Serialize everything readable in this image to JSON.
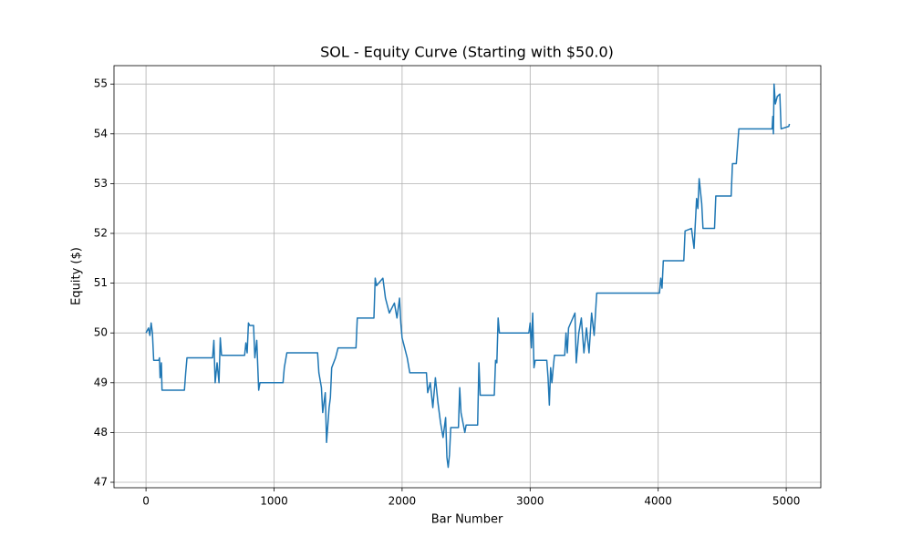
{
  "chart_data": {
    "type": "line",
    "title": "SOL - Equity Curve (Starting with $50.0)",
    "x_label": "Bar Number",
    "y_label": "Equity ($)",
    "xlim": [
      -250,
      5270
    ],
    "ylim": [
      46.89,
      55.37
    ],
    "xticks": [
      0,
      1000,
      2000,
      3000,
      4000,
      5000
    ],
    "yticks": [
      47,
      48,
      49,
      50,
      51,
      52,
      53,
      54,
      55
    ],
    "grid": true,
    "series": [
      {
        "color": "#1f77b4",
        "x": [
          0,
          20,
          30,
          40,
          50,
          60,
          100,
          105,
          110,
          120,
          125,
          300,
          310,
          320,
          520,
          530,
          540,
          555,
          570,
          580,
          590,
          770,
          780,
          790,
          800,
          810,
          840,
          850,
          865,
          880,
          890,
          1070,
          1080,
          1100,
          1340,
          1350,
          1370,
          1380,
          1400,
          1410,
          1430,
          1440,
          1450,
          1480,
          1500,
          1640,
          1650,
          1780,
          1790,
          1800,
          1850,
          1870,
          1900,
          1940,
          1960,
          1980,
          1990,
          2000,
          2020,
          2040,
          2060,
          2190,
          2200,
          2220,
          2240,
          2260,
          2280,
          2300,
          2320,
          2340,
          2350,
          2360,
          2370,
          2380,
          2440,
          2450,
          2460,
          2490,
          2500,
          2590,
          2600,
          2610,
          2720,
          2730,
          2740,
          2750,
          2760,
          2990,
          3000,
          3010,
          3020,
          3030,
          3040,
          3130,
          3140,
          3150,
          3160,
          3170,
          3180,
          3190,
          3270,
          3280,
          3290,
          3300,
          3350,
          3360,
          3380,
          3400,
          3420,
          3440,
          3460,
          3480,
          3500,
          3520,
          4010,
          4020,
          4030,
          4040,
          4200,
          4210,
          4260,
          4280,
          4300,
          4310,
          4320,
          4340,
          4350,
          4440,
          4450,
          4570,
          4580,
          4610,
          4630,
          4890,
          4895,
          4900,
          4905,
          4915,
          4930,
          4950,
          4960,
          5020,
          5025
        ],
        "values": [
          50.0,
          50.1,
          49.95,
          50.2,
          50.0,
          49.45,
          49.45,
          49.5,
          49.1,
          49.4,
          48.85,
          48.85,
          49.2,
          49.5,
          49.5,
          49.85,
          49.0,
          49.4,
          49.0,
          49.9,
          49.55,
          49.55,
          49.8,
          49.6,
          50.2,
          50.15,
          50.15,
          49.5,
          49.85,
          48.85,
          49.0,
          49.0,
          49.3,
          49.6,
          49.6,
          49.2,
          48.9,
          48.4,
          48.8,
          47.8,
          48.5,
          48.7,
          49.3,
          49.5,
          49.7,
          49.7,
          50.3,
          50.3,
          51.1,
          50.95,
          51.1,
          50.7,
          50.4,
          50.6,
          50.3,
          50.7,
          50.2,
          49.9,
          49.7,
          49.5,
          49.2,
          49.2,
          48.8,
          49.0,
          48.5,
          49.1,
          48.6,
          48.2,
          47.9,
          48.3,
          47.5,
          47.3,
          47.55,
          48.1,
          48.1,
          48.9,
          48.4,
          48.0,
          48.15,
          48.15,
          49.4,
          48.75,
          48.75,
          49.45,
          49.4,
          50.3,
          50.0,
          50.0,
          50.2,
          49.7,
          50.4,
          49.3,
          49.45,
          49.45,
          49.1,
          48.55,
          49.3,
          49.0,
          49.3,
          49.55,
          49.55,
          50.0,
          49.6,
          50.1,
          50.4,
          49.4,
          50.0,
          50.3,
          49.6,
          50.1,
          49.6,
          50.4,
          49.95,
          50.8,
          50.8,
          51.1,
          50.9,
          51.45,
          51.45,
          52.05,
          52.1,
          51.7,
          52.7,
          52.5,
          53.1,
          52.6,
          52.1,
          52.1,
          52.75,
          52.75,
          53.4,
          53.4,
          54.1,
          54.1,
          54.35,
          54.0,
          55.0,
          54.6,
          54.75,
          54.8,
          54.1,
          54.15,
          54.2
        ]
      }
    ]
  }
}
